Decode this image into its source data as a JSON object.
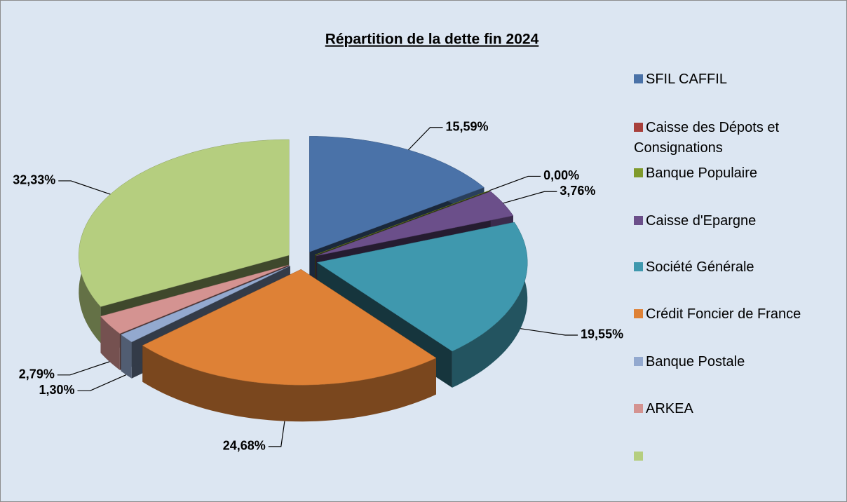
{
  "chart_data": {
    "type": "pie3d",
    "title": "Répartition de la dette fin 2024",
    "categories": [
      "SFIL CAFFIL",
      "Caisse des Dépots et Consignations",
      "Banque Populaire",
      "Caisse d'Epargne",
      "Société Générale",
      "Crédit Foncier de France",
      "Banque Postale",
      "ARKEA",
      null
    ],
    "values": [
      15.59,
      0,
      0,
      3.76,
      19.55,
      24.68,
      1.3,
      2.79,
      32.33
    ],
    "value_labels": [
      "15,59%",
      null,
      "0,00%",
      "3,76%",
      "19,55%",
      "24,68%",
      "1,30%",
      "2,79%",
      "32,33%"
    ],
    "colors": [
      "#4a72a8",
      "#a8403c",
      "#7f9a2c",
      "#6b4f8a",
      "#3f98ae",
      "#de8136",
      "#93a9cf",
      "#d49391",
      "#b5ce7f"
    ],
    "legend": "right"
  }
}
